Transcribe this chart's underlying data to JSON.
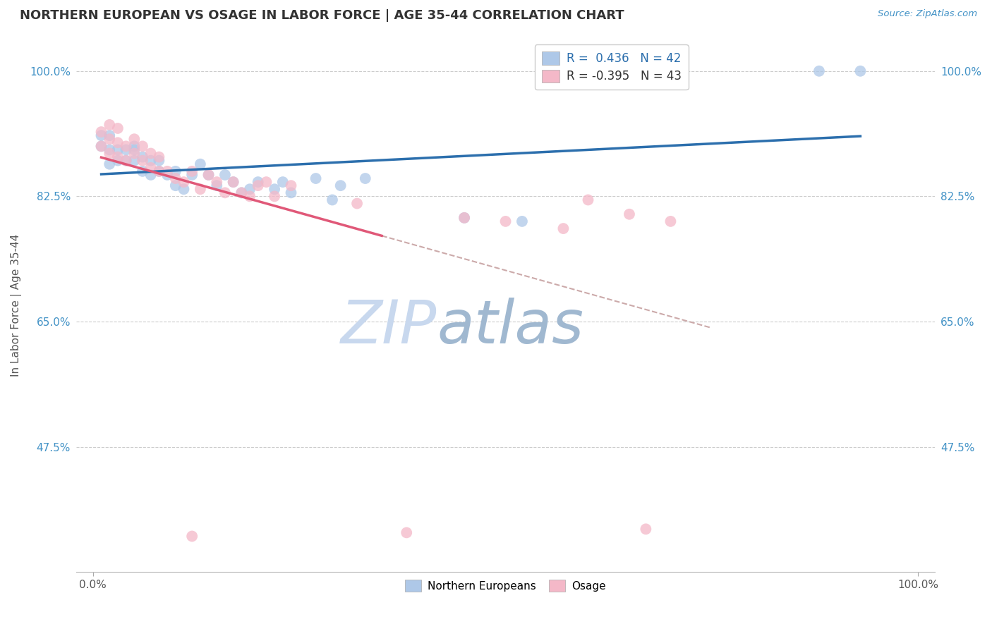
{
  "title": "NORTHERN EUROPEAN VS OSAGE IN LABOR FORCE | AGE 35-44 CORRELATION CHART",
  "source_text": "Source: ZipAtlas.com",
  "ylabel": "In Labor Force | Age 35-44",
  "legend_label1": "Northern Europeans",
  "legend_label2": "Osage",
  "r1": 0.436,
  "n1": 42,
  "r2": -0.395,
  "n2": 43,
  "blue_color": "#aec8e8",
  "pink_color": "#f4b8c8",
  "blue_line_color": "#2c6fad",
  "pink_line_color": "#e05878",
  "source_color": "#4292c6",
  "title_color": "#333333",
  "grid_color": "#cccccc",
  "watermark_color_zip": "#c8d8ee",
  "watermark_color_atlas": "#a0b8d0",
  "blue_scatter_x": [
    0.01,
    0.01,
    0.02,
    0.02,
    0.02,
    0.03,
    0.03,
    0.04,
    0.04,
    0.05,
    0.05,
    0.05,
    0.06,
    0.06,
    0.07,
    0.07,
    0.08,
    0.08,
    0.09,
    0.1,
    0.1,
    0.11,
    0.12,
    0.13,
    0.14,
    0.15,
    0.16,
    0.17,
    0.18,
    0.19,
    0.2,
    0.22,
    0.23,
    0.24,
    0.27,
    0.29,
    0.3,
    0.33,
    0.45,
    0.52,
    0.88,
    0.93
  ],
  "blue_scatter_y": [
    0.895,
    0.91,
    0.87,
    0.89,
    0.91,
    0.875,
    0.89,
    0.875,
    0.89,
    0.875,
    0.89,
    0.895,
    0.86,
    0.88,
    0.855,
    0.875,
    0.86,
    0.875,
    0.855,
    0.84,
    0.86,
    0.835,
    0.855,
    0.87,
    0.855,
    0.84,
    0.855,
    0.845,
    0.83,
    0.835,
    0.845,
    0.835,
    0.845,
    0.83,
    0.85,
    0.82,
    0.84,
    0.85,
    0.795,
    0.79,
    1.0,
    1.0
  ],
  "pink_scatter_x": [
    0.01,
    0.01,
    0.02,
    0.02,
    0.02,
    0.03,
    0.03,
    0.03,
    0.04,
    0.04,
    0.05,
    0.05,
    0.06,
    0.06,
    0.07,
    0.07,
    0.08,
    0.08,
    0.09,
    0.1,
    0.11,
    0.12,
    0.13,
    0.14,
    0.15,
    0.16,
    0.17,
    0.18,
    0.19,
    0.2,
    0.21,
    0.22,
    0.24,
    0.12,
    0.32,
    0.38,
    0.45,
    0.5,
    0.57,
    0.6,
    0.65,
    0.67,
    0.7
  ],
  "pink_scatter_y": [
    0.895,
    0.915,
    0.885,
    0.905,
    0.925,
    0.88,
    0.9,
    0.92,
    0.875,
    0.895,
    0.885,
    0.905,
    0.875,
    0.895,
    0.865,
    0.885,
    0.86,
    0.88,
    0.86,
    0.85,
    0.845,
    0.86,
    0.835,
    0.855,
    0.845,
    0.83,
    0.845,
    0.83,
    0.825,
    0.84,
    0.845,
    0.825,
    0.84,
    0.35,
    0.815,
    0.355,
    0.795,
    0.79,
    0.78,
    0.82,
    0.8,
    0.36,
    0.79
  ]
}
